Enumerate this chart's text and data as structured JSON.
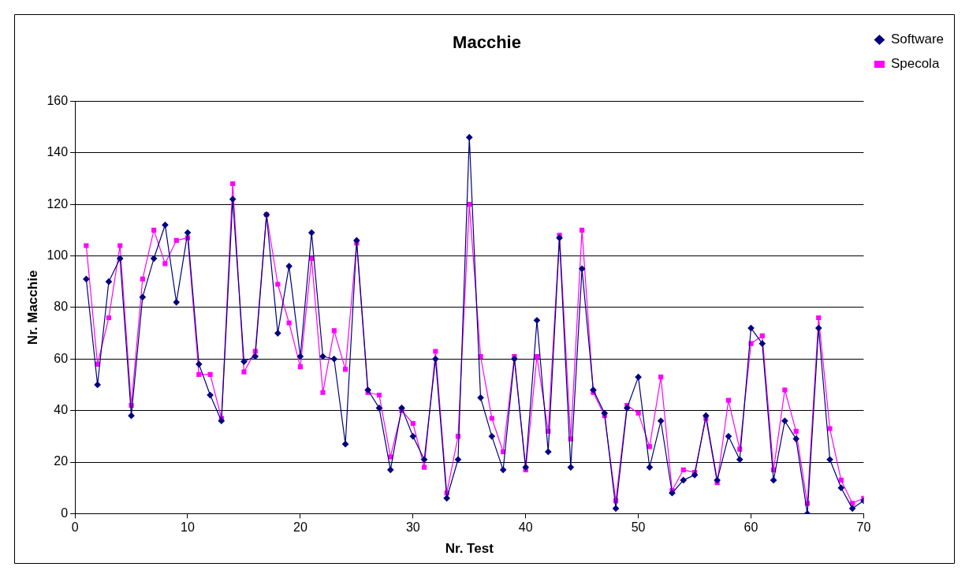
{
  "chart_data": {
    "type": "line",
    "title": "Macchie",
    "xlabel": "Nr. Test",
    "ylabel": "Nr. Macchie",
    "x": [
      1,
      2,
      3,
      4,
      5,
      6,
      7,
      8,
      9,
      10,
      11,
      12,
      13,
      14,
      15,
      16,
      17,
      18,
      19,
      20,
      21,
      22,
      23,
      24,
      25,
      26,
      27,
      28,
      29,
      30,
      31,
      32,
      33,
      34,
      35,
      36,
      37,
      38,
      39,
      40,
      41,
      42,
      43,
      44,
      45,
      46,
      47,
      48,
      49,
      50,
      51,
      52,
      53,
      54,
      55,
      56,
      57,
      58,
      59,
      60,
      61,
      62,
      63,
      64,
      65,
      66,
      67,
      68,
      69,
      70
    ],
    "series": [
      {
        "name": "Software",
        "color": "#000080",
        "marker": "diamond",
        "values": [
          91,
          50,
          90,
          99,
          38,
          84,
          99,
          112,
          82,
          109,
          58,
          46,
          36,
          122,
          59,
          61,
          116,
          70,
          96,
          61,
          109,
          61,
          60,
          27,
          106,
          48,
          41,
          17,
          41,
          30,
          21,
          60,
          6,
          21,
          146,
          45,
          30,
          17,
          60,
          18,
          75,
          24,
          107,
          18,
          95,
          48,
          39,
          2,
          41,
          53,
          18,
          36,
          8,
          13,
          15,
          38,
          13,
          30,
          21,
          72,
          66,
          13,
          36,
          29,
          0,
          72,
          21,
          10,
          2,
          5
        ]
      },
      {
        "name": "Specola",
        "color": "#ff00ff",
        "marker": "square",
        "values": [
          104,
          58,
          76,
          104,
          42,
          91,
          110,
          97,
          106,
          107,
          54,
          54,
          37,
          128,
          55,
          63,
          116,
          89,
          74,
          57,
          99,
          47,
          71,
          56,
          105,
          47,
          46,
          22,
          40,
          35,
          18,
          63,
          8,
          30,
          120,
          61,
          37,
          24,
          61,
          17,
          61,
          32,
          108,
          29,
          110,
          47,
          38,
          5,
          42,
          39,
          26,
          53,
          9,
          17,
          16,
          37,
          12,
          44,
          25,
          66,
          69,
          17,
          48,
          32,
          4,
          76,
          33,
          13,
          4,
          6
        ]
      }
    ],
    "xlim": [
      0,
      70
    ],
    "xticks": [
      0,
      10,
      20,
      30,
      40,
      50,
      60,
      70
    ],
    "ylim": [
      0,
      160
    ],
    "yticks": [
      0,
      20,
      40,
      60,
      80,
      100,
      120,
      140,
      160
    ],
    "grid": "y",
    "legend": "top right",
    "line_style": "solid"
  }
}
